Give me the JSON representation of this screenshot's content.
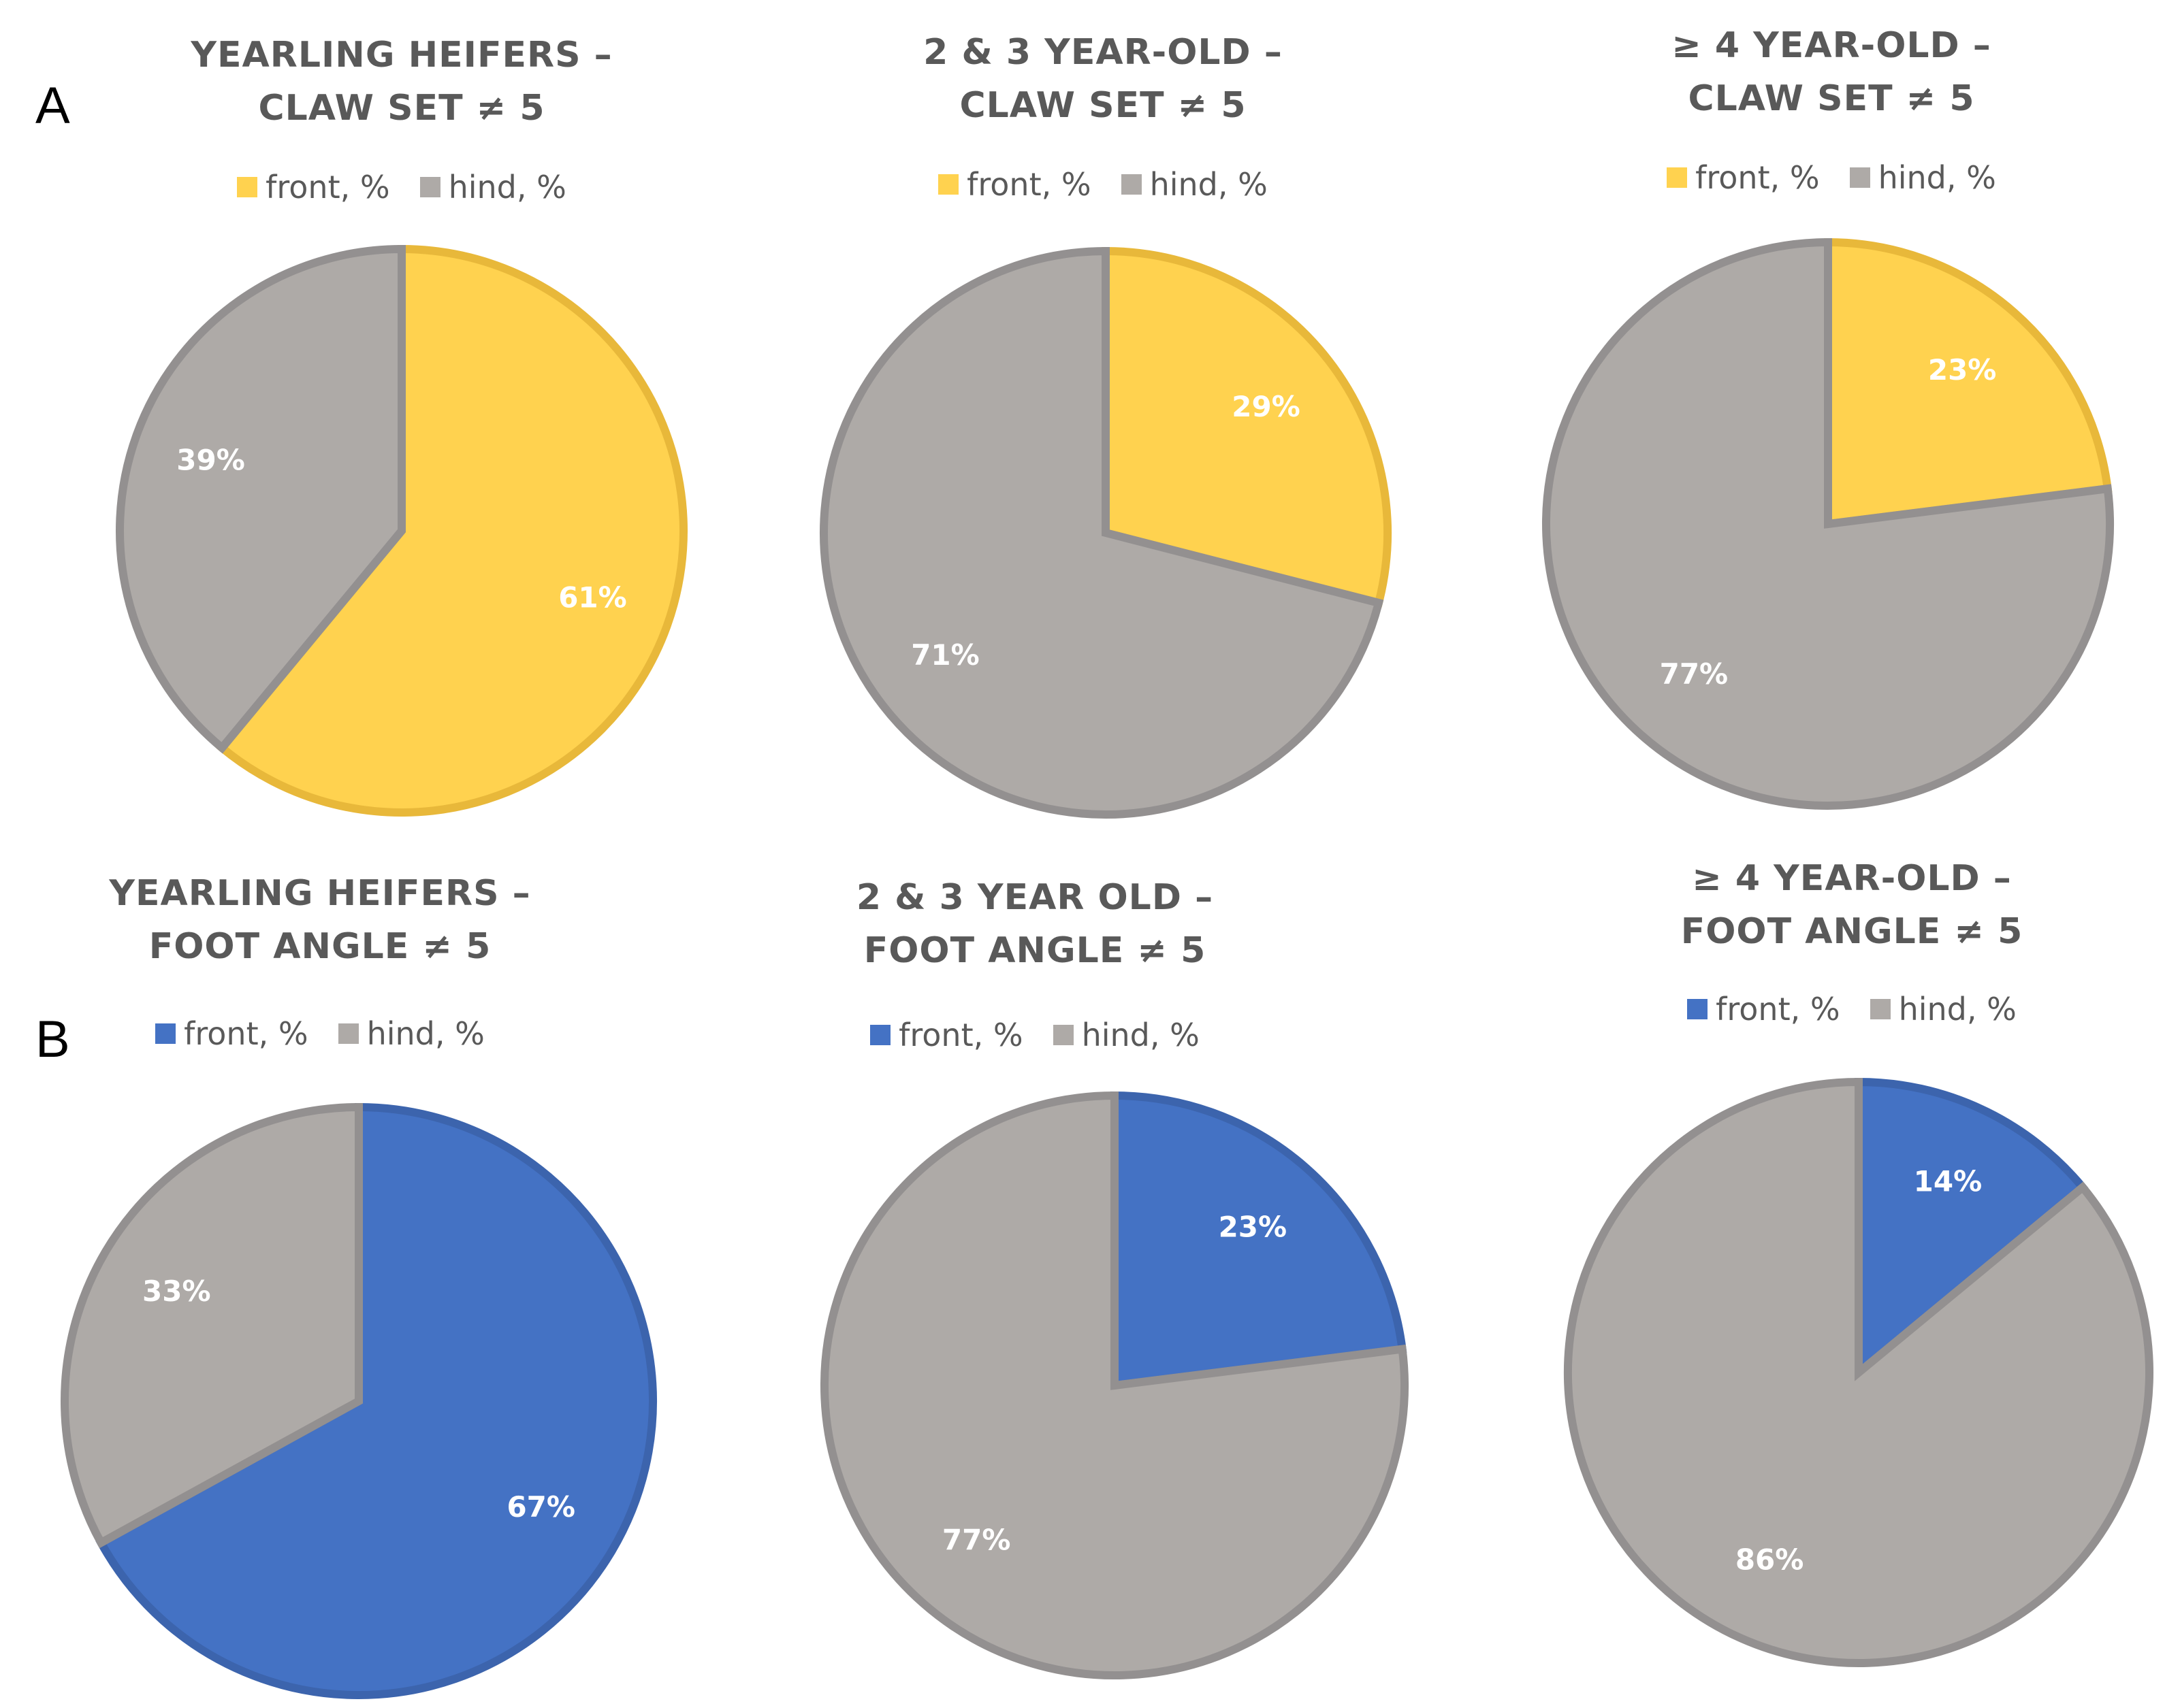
{
  "panels": {
    "a": "A",
    "b": "B"
  },
  "colors": {
    "front_a": "#FFD24F",
    "front_a_edge": "#E8B83A",
    "front_b": "#4472C4",
    "front_b_edge": "#3C64AD",
    "hind": "#AEAAA7",
    "hind_edge": "#939090"
  },
  "chart_data": [
    {
      "type": "pie",
      "title": [
        "YEARLING HEIFERS –",
        "CLAW SET ≠ 5"
      ],
      "legend": [
        "front, %",
        "hind, %"
      ],
      "categories": [
        "front, %",
        "hind, %"
      ],
      "values": [
        61,
        39
      ],
      "labels": [
        "61%",
        "39%"
      ]
    },
    {
      "type": "pie",
      "title": [
        "2 & 3 YEAR-OLD –",
        "CLAW SET ≠ 5"
      ],
      "legend": [
        "front, %",
        "hind, %"
      ],
      "categories": [
        "front, %",
        "hind, %"
      ],
      "values": [
        29,
        71
      ],
      "labels": [
        "29%",
        "71%"
      ]
    },
    {
      "type": "pie",
      "title": [
        "≥ 4 YEAR-OLD –",
        "CLAW SET ≠ 5"
      ],
      "legend": [
        "front, %",
        "hind, %"
      ],
      "categories": [
        "front, %",
        "hind, %"
      ],
      "values": [
        23,
        77
      ],
      "labels": [
        "23%",
        "77%"
      ]
    },
    {
      "type": "pie",
      "title": [
        "YEARLING HEIFERS –",
        "FOOT ANGLE ≠ 5"
      ],
      "legend": [
        "front, %",
        "hind, %"
      ],
      "categories": [
        "front, %",
        "hind, %"
      ],
      "values": [
        67,
        33
      ],
      "labels": [
        "67%",
        "33%"
      ]
    },
    {
      "type": "pie",
      "title": [
        "2 & 3 YEAR OLD –",
        "FOOT ANGLE ≠ 5"
      ],
      "legend": [
        "front, %",
        "hind, %"
      ],
      "categories": [
        "front, %",
        "hind, %"
      ],
      "values": [
        23,
        77
      ],
      "labels": [
        "23%",
        "77%"
      ]
    },
    {
      "type": "pie",
      "title": [
        "≥ 4 YEAR-OLD –",
        "FOOT ANGLE ≠ 5"
      ],
      "legend": [
        "front, %",
        "hind, %"
      ],
      "categories": [
        "front, %",
        "hind, %"
      ],
      "values": [
        14,
        86
      ],
      "labels": [
        "14%",
        "86%"
      ]
    }
  ]
}
